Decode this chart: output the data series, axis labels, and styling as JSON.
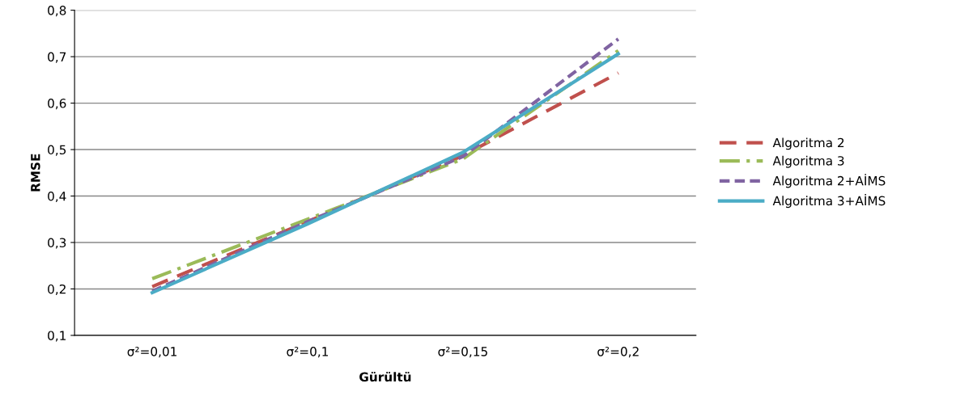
{
  "chart_data": {
    "type": "line",
    "xlabel": "Gürültü",
    "ylabel": "RMSE",
    "categories": [
      "σ²=0,01",
      "σ²=0,1",
      "σ²=0,15",
      "σ²=0,2"
    ],
    "series": [
      {
        "name": "Algoritma 2",
        "color": "#c0504d",
        "values": [
          0.205,
          0.345,
          0.487,
          0.665
        ],
        "line_style": "dashed"
      },
      {
        "name": "Algoritma 3",
        "color": "#9bbb59",
        "values": [
          0.222,
          0.35,
          0.48,
          0.713
        ],
        "line_style": "dashdot"
      },
      {
        "name": "Algoritma 2+AİMS",
        "color": "#8064a2",
        "values": [
          0.195,
          0.345,
          0.485,
          0.738
        ],
        "line_style": "dashed_short"
      },
      {
        "name": "Algoritma 3+AİMS",
        "color": "#4bacc6",
        "values": [
          0.192,
          0.34,
          0.494,
          0.706
        ],
        "line_style": "solid"
      }
    ],
    "ylim": [
      0.1,
      0.8
    ],
    "yticks": [
      {
        "value": 0.1,
        "label": "0,1"
      },
      {
        "value": 0.2,
        "label": "0,2"
      },
      {
        "value": 0.3,
        "label": "0,3"
      },
      {
        "value": 0.4,
        "label": "0,4"
      },
      {
        "value": 0.5,
        "label": "0,5"
      },
      {
        "value": 0.6,
        "label": "0,6"
      },
      {
        "value": 0.7,
        "label": "0,7"
      },
      {
        "value": 0.8,
        "label": "0,8"
      }
    ],
    "grid": "y",
    "legend": "right",
    "marker": "none"
  }
}
